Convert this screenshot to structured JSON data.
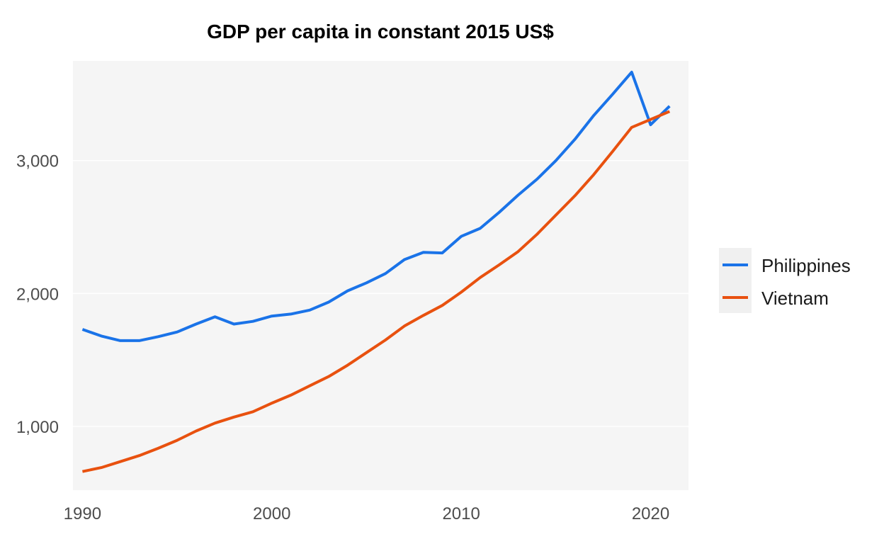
{
  "chart_data": {
    "type": "line",
    "title": "GDP per capita in constant 2015 US$",
    "xlabel": "",
    "ylabel": "",
    "xlim": [
      1989.5,
      2022
    ],
    "ylim": [
      520,
      3750
    ],
    "x_ticks": [
      1990,
      2000,
      2010,
      2020
    ],
    "y_ticks": [
      1000,
      2000,
      3000
    ],
    "y_tick_labels": [
      "1,000",
      "2,000",
      "3,000"
    ],
    "x_tick_labels": [
      "1990",
      "2000",
      "2010",
      "2020"
    ],
    "grid": true,
    "legend_position": "right",
    "x": [
      1990,
      1991,
      1992,
      1993,
      1994,
      1995,
      1996,
      1997,
      1998,
      1999,
      2000,
      2001,
      2002,
      2003,
      2004,
      2005,
      2006,
      2007,
      2008,
      2009,
      2010,
      2011,
      2012,
      2013,
      2014,
      2015,
      2016,
      2017,
      2018,
      2019,
      2020,
      2021
    ],
    "series": [
      {
        "name": "Philippines",
        "color": "#1a73e8",
        "values": [
          1730,
          1680,
          1645,
          1645,
          1675,
          1710,
          1770,
          1825,
          1770,
          1790,
          1830,
          1845,
          1875,
          1935,
          2020,
          2080,
          2150,
          2255,
          2310,
          2305,
          2430,
          2490,
          2610,
          2740,
          2860,
          3000,
          3160,
          3340,
          3500,
          3665,
          3270,
          3410
        ]
      },
      {
        "name": "Vietnam",
        "color": "#e8510f",
        "values": [
          660,
          690,
          735,
          780,
          835,
          895,
          965,
          1025,
          1070,
          1110,
          1175,
          1235,
          1305,
          1375,
          1460,
          1555,
          1650,
          1755,
          1835,
          1910,
          2010,
          2120,
          2215,
          2315,
          2445,
          2590,
          2735,
          2895,
          3070,
          3250,
          3310,
          3370
        ]
      }
    ]
  }
}
